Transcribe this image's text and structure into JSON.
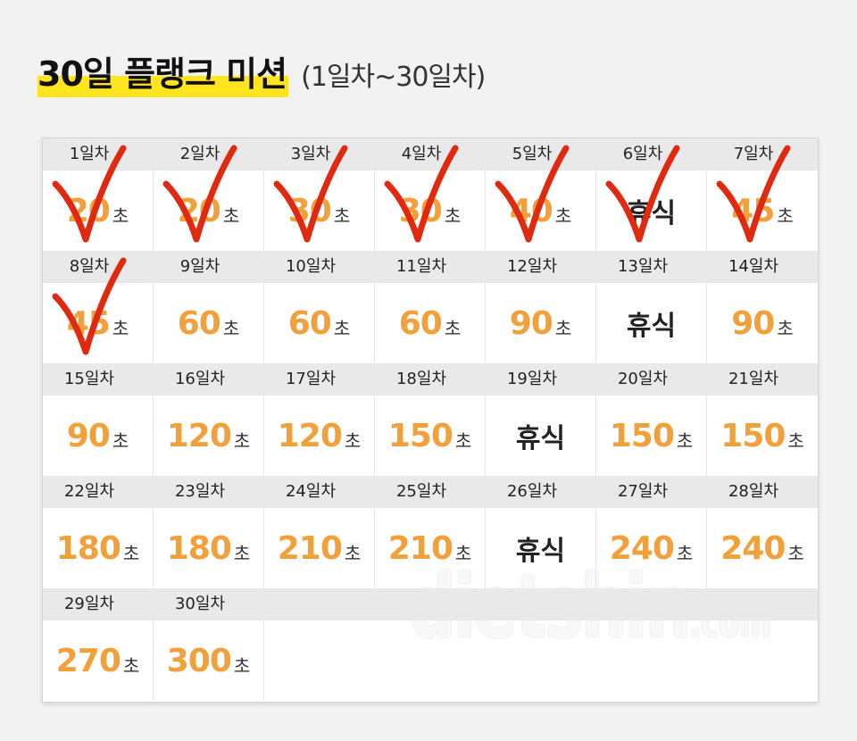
{
  "title": {
    "main": "30일 플랭크 미션",
    "sub": "(1일차~30일차)"
  },
  "unit": "초",
  "rest_label": "휴식",
  "colors": {
    "accent": "#f2a03a",
    "highlight": "#ffe51e",
    "check": "#e02a10"
  },
  "days": [
    {
      "label": "1일차",
      "value": "20",
      "checked": true
    },
    {
      "label": "2일차",
      "value": "20",
      "checked": true
    },
    {
      "label": "3일차",
      "value": "30",
      "checked": true
    },
    {
      "label": "4일차",
      "value": "30",
      "checked": true
    },
    {
      "label": "5일차",
      "value": "40",
      "checked": true
    },
    {
      "label": "6일차",
      "value": null,
      "checked": true
    },
    {
      "label": "7일차",
      "value": "45",
      "checked": true
    },
    {
      "label": "8일차",
      "value": "45",
      "checked": true
    },
    {
      "label": "9일차",
      "value": "60",
      "checked": false
    },
    {
      "label": "10일차",
      "value": "60",
      "checked": false
    },
    {
      "label": "11일차",
      "value": "60",
      "checked": false
    },
    {
      "label": "12일차",
      "value": "90",
      "checked": false
    },
    {
      "label": "13일차",
      "value": null,
      "checked": false
    },
    {
      "label": "14일차",
      "value": "90",
      "checked": false
    },
    {
      "label": "15일차",
      "value": "90",
      "checked": false
    },
    {
      "label": "16일차",
      "value": "120",
      "checked": false
    },
    {
      "label": "17일차",
      "value": "120",
      "checked": false
    },
    {
      "label": "18일차",
      "value": "150",
      "checked": false
    },
    {
      "label": "19일차",
      "value": null,
      "checked": false
    },
    {
      "label": "20일차",
      "value": "150",
      "checked": false
    },
    {
      "label": "21일차",
      "value": "150",
      "checked": false
    },
    {
      "label": "22일차",
      "value": "180",
      "checked": false
    },
    {
      "label": "23일차",
      "value": "180",
      "checked": false
    },
    {
      "label": "24일차",
      "value": "210",
      "checked": false
    },
    {
      "label": "25일차",
      "value": "210",
      "checked": false
    },
    {
      "label": "26일차",
      "value": null,
      "checked": false
    },
    {
      "label": "27일차",
      "value": "240",
      "checked": false
    },
    {
      "label": "28일차",
      "value": "240",
      "checked": false
    },
    {
      "label": "29일차",
      "value": "270",
      "checked": false
    },
    {
      "label": "30일차",
      "value": "300",
      "checked": false
    }
  ],
  "watermark": {
    "main": "dietshin",
    "suffix": ".com"
  }
}
